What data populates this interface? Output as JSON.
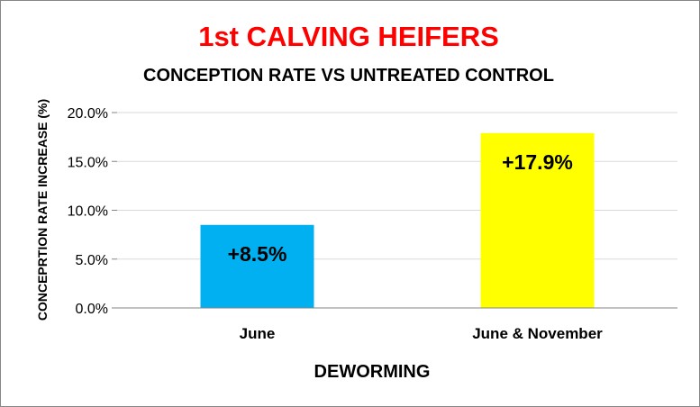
{
  "chart_data": {
    "type": "bar",
    "title": "1st CALVING HEIFERS",
    "subtitle": "CONCEPTION RATE VS UNTREATED CONTROL",
    "xlabel": "DEWORMING",
    "ylabel": "CONCEPRTION RATE INCREASE (%)",
    "categories": [
      "June",
      "June & November"
    ],
    "values": [
      8.5,
      17.9
    ],
    "data_labels": [
      "+8.5%",
      "+17.9%"
    ],
    "bar_colors": [
      "#00B0F0",
      "#FFFF00"
    ],
    "ylim": [
      0,
      20
    ],
    "yticks": [
      0,
      5,
      10,
      15,
      20
    ],
    "ytick_labels": [
      "0.0%",
      "5.0%",
      "10.0%",
      "15.0%",
      "20.0%"
    ],
    "grid": true,
    "title_color": "#FF0000",
    "text_color": "#000000",
    "gridline_color": "#D9D9D9"
  }
}
